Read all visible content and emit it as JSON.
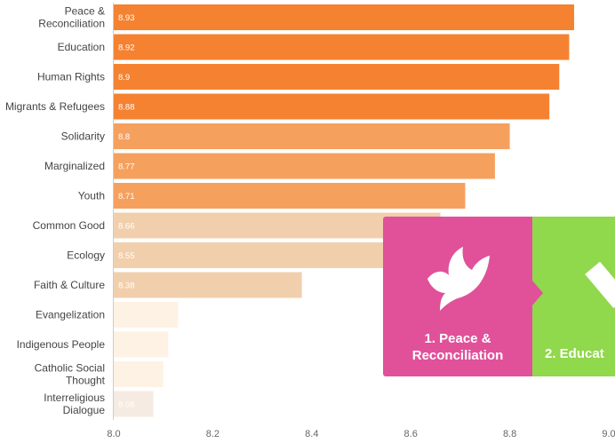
{
  "chart_data": {
    "type": "bar",
    "orientation": "horizontal",
    "categories": [
      "Peace &\nReconciliation",
      "Education",
      "Human Rights",
      "Migrants & Refugees",
      "Solidarity",
      "Marginalized",
      "Youth",
      "Common Good",
      "Ecology",
      "Faith & Culture",
      "Evangelization",
      "Indigenous People",
      "Catholic Social\nThought",
      "Interreligious\nDialogue"
    ],
    "values": [
      8.93,
      8.92,
      8.9,
      8.88,
      8.8,
      8.77,
      8.71,
      8.66,
      8.55,
      8.38,
      8.13,
      8.11,
      8.1,
      8.08
    ],
    "value_labels": [
      "8.93",
      "8.92",
      "8.9",
      "8.88",
      "8.8",
      "8.77",
      "8.71",
      "8.66",
      "8.55",
      "8.38",
      "",
      "",
      "",
      "8.08"
    ],
    "colors": [
      "#f58231",
      "#f58231",
      "#f58231",
      "#f58231",
      "#f6a05e",
      "#f6a05e",
      "#f6a05e",
      "#f2cfac",
      "#f2cfac",
      "#f2cfac",
      "#fdf2e4",
      "#fdf2e4",
      "#fdf2e4",
      "#f5ebe2"
    ],
    "xlim": [
      8.0,
      9.0
    ],
    "xticks": [
      "8.0",
      "8.2",
      "8.4",
      "8.6",
      "8.8",
      "9.0"
    ],
    "title": "",
    "xlabel": "",
    "ylabel": "",
    "grid": false
  },
  "overlay": {
    "cards": [
      {
        "label": "1. Peace &\nReconciliation",
        "color": "#e0519a",
        "icon": "dove-icon"
      },
      {
        "label": "2. Educat",
        "color": "#90d84c",
        "icon": "pencil-icon"
      }
    ]
  }
}
